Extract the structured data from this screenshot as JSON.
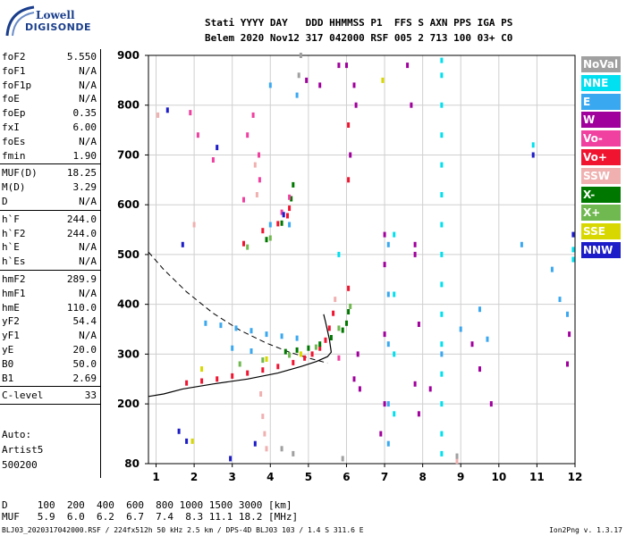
{
  "logo": {
    "top": "Lowell",
    "bottom": "DIGISONDE"
  },
  "header": {
    "line1": "Stati YYYY DAY   DDD HHMMSS P1  FFS S AXN PPS IGA PS",
    "line2": "Belem 2020 Nov12 317 042000 RSF 005 2 713 100 03+ C0"
  },
  "params": [
    [
      {
        "label": "foF2",
        "value": "5.550"
      },
      {
        "label": "foF1",
        "value": "N/A"
      },
      {
        "label": "foF1p",
        "value": "N/A"
      },
      {
        "label": "foE",
        "value": "N/A"
      },
      {
        "label": "foEp",
        "value": "0.35"
      },
      {
        "label": "fxI",
        "value": "6.00"
      },
      {
        "label": "foEs",
        "value": "N/A"
      },
      {
        "label": "fmin",
        "value": "1.90"
      }
    ],
    [
      {
        "label": "MUF(D)",
        "value": "18.25"
      },
      {
        "label": "M(D)",
        "value": "3.29"
      },
      {
        "label": "D",
        "value": "N/A"
      }
    ],
    [
      {
        "label": "h`F",
        "value": "244.0"
      },
      {
        "label": "h`F2",
        "value": "244.0"
      },
      {
        "label": "h`E",
        "value": "N/A"
      },
      {
        "label": "h`Es",
        "value": "N/A"
      }
    ],
    [
      {
        "label": "hmF2",
        "value": "289.9"
      },
      {
        "label": "hmF1",
        "value": "N/A"
      },
      {
        "label": "hmE",
        "value": "110.0"
      },
      {
        "label": "yF2",
        "value": "54.4"
      },
      {
        "label": "yF1",
        "value": "N/A"
      },
      {
        "label": "yE",
        "value": "20.0"
      },
      {
        "label": "B0",
        "value": "50.0"
      },
      {
        "label": "B1",
        "value": "2.69"
      }
    ],
    [
      {
        "label": "C-level",
        "value": "33"
      }
    ]
  ],
  "autoscaler": {
    "label": "Auto:",
    "name": "Artist5",
    "version": "500200"
  },
  "legend": [
    {
      "name": "NoVal",
      "color": "#a0a0a0"
    },
    {
      "name": "NNE",
      "color": "#00e0f0"
    },
    {
      "name": "E",
      "color": "#3aa8f0"
    },
    {
      "name": "W",
      "color": "#a0009c"
    },
    {
      "name": "Vo-",
      "color": "#f040a0"
    },
    {
      "name": "Vo+",
      "color": "#f01430"
    },
    {
      "name": "SSW",
      "color": "#f0b0b0"
    },
    {
      "name": "X-",
      "color": "#007800"
    },
    {
      "name": "X+",
      "color": "#70b850"
    },
    {
      "name": "SSE",
      "color": "#d8d800"
    },
    {
      "name": "NNW",
      "color": "#1c1cc8"
    }
  ],
  "muf_table": {
    "d_line": "D     100  200  400  600  800 1000 1500 3000 [km]",
    "muf_line": "MUF   5.9  6.0  6.2  6.7  7.4  8.3 11.1 18.2 [MHz]"
  },
  "footer": {
    "left": "BLJ03_2020317042000.RSF / 224fx512h 50 kHz 2.5 km / DPS-4D BLJ03 103 / 1.4 S 311.6 E",
    "right": "Ion2Png v. 1.3.17"
  },
  "chart_data": {
    "type": "scatter",
    "title": "",
    "xlabel": "",
    "ylabel": "",
    "xlim": [
      0.8,
      12
    ],
    "ylim": [
      80,
      900
    ],
    "x_ticks": [
      1,
      2,
      3,
      4,
      5,
      6,
      7,
      8,
      9,
      10,
      11,
      12
    ],
    "y_ticks": [
      80,
      200,
      300,
      400,
      500,
      600,
      700,
      800,
      900
    ],
    "grid": true,
    "legend_position": "right",
    "series": [
      {
        "name": "Vo+",
        "color": "#f01430",
        "points": [
          [
            1.8,
            242
          ],
          [
            2.2,
            246
          ],
          [
            2.6,
            250
          ],
          [
            3.0,
            256
          ],
          [
            3.4,
            262
          ],
          [
            3.8,
            268
          ],
          [
            4.2,
            275
          ],
          [
            4.6,
            283
          ],
          [
            4.9,
            292
          ],
          [
            5.1,
            300
          ],
          [
            5.3,
            312
          ],
          [
            5.45,
            328
          ],
          [
            5.55,
            352
          ],
          [
            5.65,
            382
          ],
          [
            3.3,
            522
          ],
          [
            3.8,
            548
          ],
          [
            4.2,
            562
          ],
          [
            4.45,
            578
          ],
          [
            4.5,
            593
          ],
          [
            6.05,
            432
          ],
          [
            6.05,
            650
          ],
          [
            6.05,
            760
          ]
        ]
      },
      {
        "name": "X-",
        "color": "#007800",
        "points": [
          [
            4.4,
            305
          ],
          [
            4.7,
            308
          ],
          [
            5.0,
            312
          ],
          [
            5.3,
            320
          ],
          [
            5.6,
            333
          ],
          [
            5.9,
            348
          ],
          [
            6.0,
            362
          ],
          [
            6.05,
            385
          ],
          [
            3.9,
            530
          ],
          [
            4.3,
            563
          ],
          [
            4.55,
            612
          ],
          [
            4.6,
            640
          ]
        ]
      },
      {
        "name": "X+",
        "color": "#70b850",
        "points": [
          [
            3.2,
            280
          ],
          [
            3.8,
            288
          ],
          [
            4.5,
            298
          ],
          [
            5.2,
            314
          ],
          [
            5.8,
            352
          ],
          [
            6.1,
            396
          ],
          [
            3.4,
            515
          ],
          [
            4.0,
            533
          ]
        ]
      },
      {
        "name": "Vo-",
        "color": "#f040a0",
        "points": [
          [
            3.4,
            740
          ],
          [
            3.55,
            780
          ],
          [
            3.7,
            700
          ],
          [
            3.72,
            650
          ],
          [
            2.1,
            740
          ],
          [
            2.5,
            690
          ],
          [
            4.3,
            585
          ],
          [
            4.5,
            615
          ],
          [
            1.9,
            785
          ],
          [
            3.3,
            610
          ],
          [
            5.8,
            292
          ]
        ]
      },
      {
        "name": "SSW",
        "color": "#f0b0b0",
        "points": [
          [
            3.75,
            220
          ],
          [
            3.8,
            175
          ],
          [
            3.85,
            140
          ],
          [
            3.9,
            110
          ],
          [
            3.6,
            680
          ],
          [
            3.65,
            620
          ],
          [
            1.05,
            780
          ],
          [
            2.0,
            560
          ],
          [
            5.7,
            410
          ],
          [
            8.9,
            85
          ]
        ]
      },
      {
        "name": "E",
        "color": "#3aa8f0",
        "points": [
          [
            2.3,
            362
          ],
          [
            2.7,
            358
          ],
          [
            3.1,
            352
          ],
          [
            3.5,
            347
          ],
          [
            3.9,
            340
          ],
          [
            4.3,
            336
          ],
          [
            4.7,
            332
          ],
          [
            3.0,
            312
          ],
          [
            3.5,
            306
          ],
          [
            7.1,
            420
          ],
          [
            7.1,
            520
          ],
          [
            7.1,
            320
          ],
          [
            7.1,
            200
          ],
          [
            7.1,
            120
          ],
          [
            8.5,
            300
          ],
          [
            9.0,
            350
          ],
          [
            9.5,
            390
          ],
          [
            9.7,
            330
          ],
          [
            10.6,
            520
          ],
          [
            11.4,
            470
          ],
          [
            11.6,
            410
          ],
          [
            11.8,
            380
          ],
          [
            4.0,
            560
          ],
          [
            4.5,
            560
          ],
          [
            4.7,
            820
          ],
          [
            4.0,
            840
          ]
        ]
      },
      {
        "name": "NNE",
        "color": "#00e0f0",
        "points": [
          [
            8.5,
            890
          ],
          [
            8.5,
            860
          ],
          [
            8.5,
            800
          ],
          [
            8.5,
            740
          ],
          [
            8.5,
            680
          ],
          [
            8.5,
            620
          ],
          [
            8.5,
            560
          ],
          [
            8.5,
            500
          ],
          [
            8.5,
            440
          ],
          [
            8.5,
            380
          ],
          [
            8.5,
            320
          ],
          [
            8.5,
            260
          ],
          [
            8.5,
            200
          ],
          [
            8.5,
            140
          ],
          [
            8.5,
            100
          ],
          [
            7.25,
            540
          ],
          [
            7.25,
            420
          ],
          [
            7.25,
            300
          ],
          [
            7.25,
            180
          ],
          [
            10.9,
            720
          ],
          [
            11.95,
            510
          ],
          [
            11.95,
            490
          ],
          [
            5.8,
            500
          ]
        ]
      },
      {
        "name": "W",
        "color": "#a0009c",
        "points": [
          [
            6.0,
            880
          ],
          [
            6.2,
            840
          ],
          [
            6.25,
            800
          ],
          [
            6.3,
            300
          ],
          [
            6.2,
            250
          ],
          [
            6.35,
            230
          ],
          [
            7.0,
            540
          ],
          [
            7.0,
            480
          ],
          [
            7.0,
            340
          ],
          [
            7.0,
            200
          ],
          [
            6.9,
            140
          ],
          [
            7.6,
            880
          ],
          [
            7.7,
            800
          ],
          [
            7.8,
            500
          ],
          [
            7.9,
            360
          ],
          [
            7.8,
            240
          ],
          [
            7.9,
            180
          ],
          [
            9.3,
            320
          ],
          [
            9.5,
            270
          ],
          [
            9.8,
            200
          ],
          [
            11.85,
            340
          ],
          [
            11.8,
            280
          ],
          [
            5.8,
            880
          ],
          [
            4.95,
            850
          ],
          [
            5.3,
            840
          ],
          [
            6.1,
            700
          ],
          [
            7.8,
            520
          ],
          [
            8.2,
            230
          ]
        ]
      },
      {
        "name": "NNW",
        "color": "#1c1cc8",
        "points": [
          [
            1.7,
            520
          ],
          [
            2.6,
            715
          ],
          [
            1.3,
            790
          ],
          [
            1.6,
            145
          ],
          [
            1.8,
            125
          ],
          [
            4.35,
            580
          ],
          [
            11.95,
            540
          ],
          [
            10.9,
            700
          ],
          [
            2.95,
            90
          ],
          [
            3.6,
            120
          ]
        ]
      },
      {
        "name": "SSE",
        "color": "#d8d800",
        "points": [
          [
            6.95,
            850
          ],
          [
            3.9,
            290
          ],
          [
            4.8,
            300
          ],
          [
            1.95,
            125
          ],
          [
            2.2,
            270
          ]
        ]
      },
      {
        "name": "NoVal",
        "color": "#a0a0a0",
        "points": [
          [
            4.8,
            900
          ],
          [
            4.75,
            860
          ],
          [
            4.3,
            110
          ],
          [
            4.6,
            100
          ],
          [
            8.9,
            95
          ],
          [
            5.9,
            90
          ]
        ]
      }
    ],
    "profile_solid": [
      [
        0.8,
        215
      ],
      [
        1.2,
        220
      ],
      [
        1.7,
        230
      ],
      [
        2.5,
        240
      ],
      [
        3.4,
        250
      ],
      [
        4.2,
        262
      ],
      [
        4.8,
        275
      ],
      [
        5.2,
        285
      ],
      [
        5.5,
        295
      ],
      [
        5.6,
        304
      ],
      [
        5.55,
        330
      ],
      [
        5.45,
        365
      ],
      [
        5.4,
        380
      ]
    ],
    "profile_dashed": [
      [
        0.8,
        505
      ],
      [
        1.2,
        470
      ],
      [
        1.8,
        425
      ],
      [
        2.5,
        382
      ],
      [
        3.2,
        348
      ],
      [
        3.9,
        322
      ],
      [
        4.5,
        304
      ],
      [
        5.0,
        292
      ],
      [
        5.5,
        282
      ]
    ]
  }
}
